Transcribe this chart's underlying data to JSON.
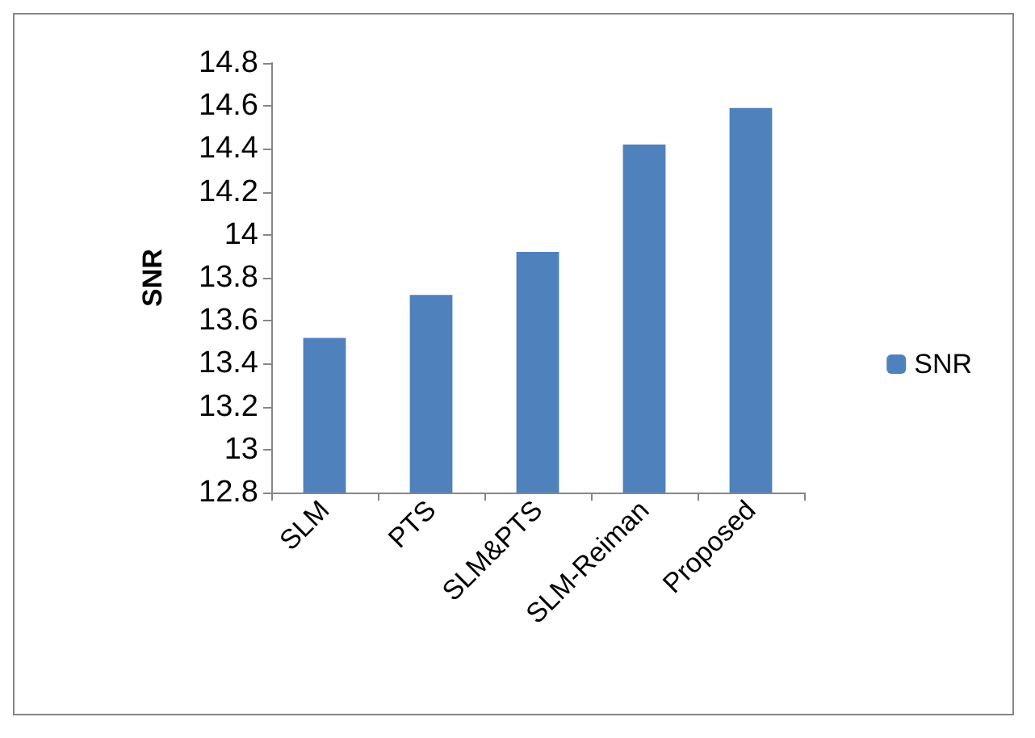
{
  "chart_data": {
    "type": "bar",
    "ylabel": "SNR",
    "categories": [
      "SLM",
      "PTS",
      "SLM&PTS",
      "SLM-Reiman",
      "Proposed"
    ],
    "series": [
      {
        "name": "SNR",
        "color": "#4f81bd",
        "values": [
          13.52,
          13.72,
          13.92,
          14.42,
          14.59
        ]
      }
    ],
    "ylim": [
      12.8,
      14.8
    ],
    "yticks": [
      12.8,
      13,
      13.2,
      13.4,
      13.6,
      13.8,
      14,
      14.2,
      14.4,
      14.6,
      14.8
    ],
    "grid": false,
    "legend": "right"
  }
}
